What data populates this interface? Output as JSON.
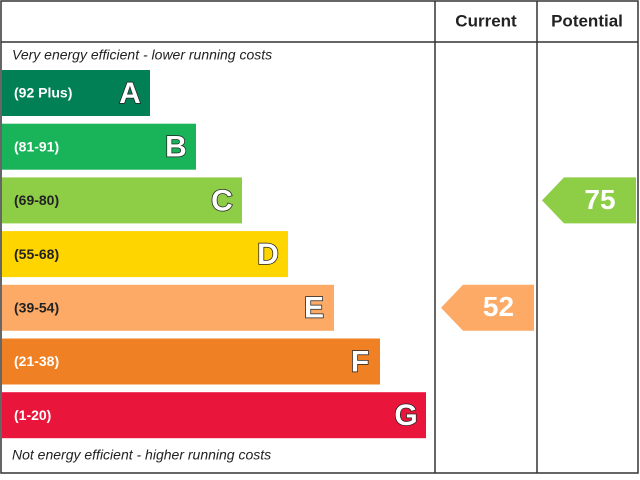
{
  "header": {
    "current": "Current",
    "potential": "Potential"
  },
  "top_note": "Very energy efficient - lower running costs",
  "bottom_note": "Not energy efficient - higher running costs",
  "bands": [
    {
      "range": "(92 Plus)",
      "letter": "A",
      "color": "#008054"
    },
    {
      "range": "(81-91)",
      "letter": "B",
      "color": "#19b459"
    },
    {
      "range": "(69-80)",
      "letter": "C",
      "color": "#8dce46"
    },
    {
      "range": "(55-68)",
      "letter": "D",
      "color": "#ffd500"
    },
    {
      "range": "(39-54)",
      "letter": "E",
      "color": "#fcaa65"
    },
    {
      "range": "(21-38)",
      "letter": "F",
      "color": "#ef8023"
    },
    {
      "range": "(1-20)",
      "letter": "G",
      "color": "#e9153b"
    }
  ],
  "current": 52,
  "potential": 75
}
